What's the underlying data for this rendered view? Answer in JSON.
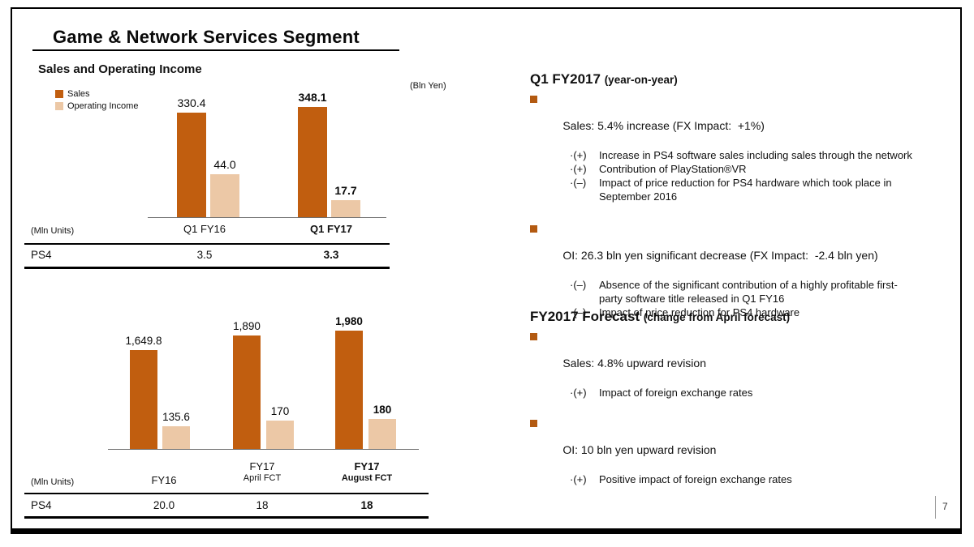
{
  "slide": {
    "title": "Game & Network Services Segment",
    "section_title": "Sales and Operating Income",
    "unit_note": "(Bln Yen)",
    "page_number": "7"
  },
  "legend": {
    "items": [
      {
        "label": "Sales"
      },
      {
        "label": "Operating Income"
      }
    ]
  },
  "colors": {
    "sales": "#C15E0F",
    "operating_income": "#ECC8A6",
    "bullet_square": "#B35A11"
  },
  "chart_data": [
    {
      "type": "bar",
      "unit": "Bln Yen",
      "categories": [
        "Q1 FY16",
        "Q1 FY17"
      ],
      "category_sublabels": [
        "",
        ""
      ],
      "emphasis_category_index": 1,
      "series": [
        {
          "name": "Sales",
          "values": [
            330.4,
            348.1
          ],
          "labels": [
            "330.4",
            "348.1"
          ]
        },
        {
          "name": "Operating Income",
          "values": [
            44.0,
            17.7
          ],
          "labels": [
            "44.0",
            "17.7"
          ]
        }
      ],
      "units_table": {
        "unit_label": "(Mln Units)",
        "row_label": "PS4",
        "values": [
          "3.5",
          "3.3"
        ]
      }
    },
    {
      "type": "bar",
      "unit": "Bln Yen",
      "categories": [
        "FY16",
        "FY17",
        "FY17"
      ],
      "category_sublabels": [
        "",
        "April FCT",
        "August FCT"
      ],
      "emphasis_category_index": 2,
      "series": [
        {
          "name": "Sales",
          "values": [
            1649.8,
            1890,
            1980
          ],
          "labels": [
            "1,649.8",
            "1,890",
            "1,980"
          ]
        },
        {
          "name": "Operating Income",
          "values": [
            135.6,
            170,
            180
          ],
          "labels": [
            "135.6",
            "170",
            "180"
          ]
        }
      ],
      "units_table": {
        "unit_label": "(Mln Units)",
        "row_label": "PS4",
        "values": [
          "20.0",
          "18",
          "18"
        ]
      }
    }
  ],
  "commentary": {
    "sections": [
      {
        "heading": "Q1 FY2017",
        "heading_suffix": "(year-on-year)",
        "bullets": [
          {
            "text": "Sales: 5.4% increase (FX Impact:  +1%)",
            "subs": [
              {
                "marker": "·(+)",
                "lines": [
                  "Increase in PS4 software sales including sales through the network"
                ]
              },
              {
                "marker": "·(+)",
                "lines": [
                  "Contribution of PlayStation®VR"
                ]
              },
              {
                "marker": "·(–)",
                "lines": [
                  "Impact of price reduction for PS4 hardware which took place in",
                  "September 2016"
                ]
              }
            ]
          },
          {
            "text": "OI: 26.3 bln yen significant decrease (FX Impact:  -2.4 bln yen)",
            "subs": [
              {
                "marker": "·(–)",
                "lines": [
                  "Absence of the significant contribution of a highly profitable first-",
                  "party software title released in Q1 FY16"
                ]
              },
              {
                "marker": "·(–)",
                "lines": [
                  "Impact of price reduction for PS4 hardware"
                ]
              }
            ]
          }
        ]
      },
      {
        "heading": "FY2017 Forecast",
        "heading_suffix": "(change from April forecast)",
        "bullets": [
          {
            "text": "Sales: 4.8% upward revision",
            "subs": [
              {
                "marker": "·(+)",
                "lines": [
                  "Impact of foreign exchange rates"
                ]
              }
            ]
          },
          {
            "text": "OI: 10 bln yen upward revision",
            "subs": [
              {
                "marker": "·(+)",
                "lines": [
                  "Positive impact of foreign exchange rates"
                ]
              }
            ]
          }
        ]
      }
    ]
  }
}
